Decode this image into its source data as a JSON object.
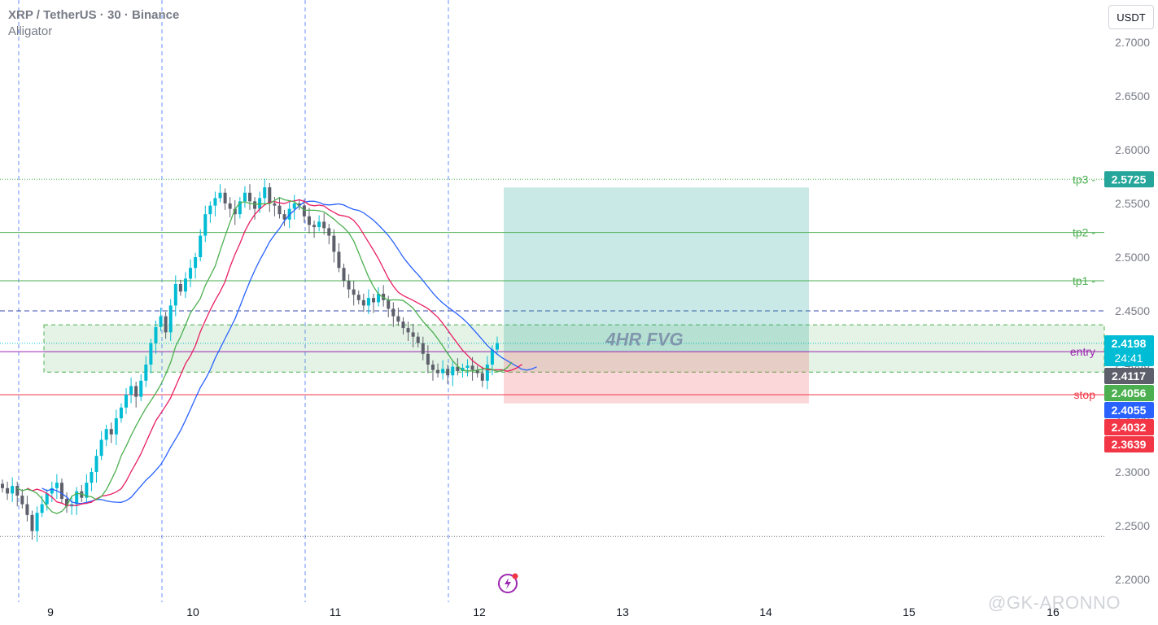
{
  "header": {
    "symbol": "XRP / TetherUS · 30 · Binance",
    "indicator": "Alligator"
  },
  "unit_button": "USDT",
  "watermark": "@GK-ARONNO",
  "colors": {
    "up": "#26a69a",
    "down": "#787b86",
    "candle_up": "#00bcd4",
    "candle_down": "#5d606b",
    "jaw": "#2962ff",
    "teeth": "#e91e63",
    "lips": "#4caf50",
    "tp": "#4caf50",
    "entry": "#9c27b0",
    "stop": "#f23645",
    "profit_zone": "rgba(38,166,154,0.25)",
    "loss_zone": "rgba(242,54,69,0.20)",
    "fvg": "rgba(76,175,80,0.15)"
  },
  "chart_data": {
    "type": "candlestick",
    "y_axis": {
      "min": 2.19,
      "max": 2.72,
      "ticks": [
        2.7,
        2.65,
        2.6,
        2.55,
        2.5,
        2.45,
        2.4,
        2.35,
        2.3,
        2.25,
        2.2
      ]
    },
    "x_axis": {
      "labels": [
        "9",
        "10",
        "11",
        "12",
        "13",
        "14",
        "15",
        "16"
      ]
    },
    "levels": [
      {
        "name": "tp3",
        "price": 2.5725,
        "color": "#4caf50",
        "style": "dotted"
      },
      {
        "name": "tp2",
        "price": 2.523,
        "color": "#4caf50",
        "style": "solid"
      },
      {
        "name": "tp1",
        "price": 2.478,
        "color": "#4caf50",
        "style": "solid"
      },
      {
        "name": "entry",
        "price": 2.412,
        "color": "#9c27b0",
        "style": "solid"
      },
      {
        "name": "stop",
        "price": 2.372,
        "color": "#f23645",
        "style": "solid"
      }
    ],
    "annotation": "4HR FVG",
    "fvg_zone": {
      "top": 2.437,
      "bottom": 2.393
    },
    "price_labels": [
      {
        "text": "2.5725",
        "price": 2.5725,
        "bg": "#26a69a"
      },
      {
        "text": "2.4198",
        "text2": "24:41",
        "price": 2.4198,
        "bg": "#00bcd4"
      },
      {
        "text": "2.4117",
        "price": 2.4117,
        "bg": "#5d606b"
      },
      {
        "text": "2.4056",
        "price": 2.4056,
        "bg": "#4caf50"
      },
      {
        "text": "2.4055",
        "price": 2.4055,
        "bg": "#2962ff"
      },
      {
        "text": "2.4032",
        "price": 2.4032,
        "bg": "#f23645"
      },
      {
        "text": "2.3639",
        "price": 2.3639,
        "bg": "#f23645"
      }
    ],
    "series": [
      {
        "name": "close_path",
        "values": [
          2.285,
          2.28,
          2.287,
          2.278,
          2.27,
          2.26,
          2.245,
          2.262,
          2.27,
          2.28,
          2.285,
          2.29,
          2.275,
          2.268,
          2.27,
          2.282,
          2.276,
          2.29,
          2.3,
          2.315,
          2.33,
          2.34,
          2.335,
          2.35,
          2.36,
          2.372,
          2.38,
          2.37,
          2.385,
          2.4,
          2.42,
          2.435,
          2.445,
          2.43,
          2.455,
          2.475,
          2.468,
          2.48,
          2.49,
          2.5,
          2.52,
          2.54,
          2.548,
          2.555,
          2.56,
          2.55,
          2.545,
          2.54,
          2.552,
          2.56,
          2.552,
          2.545,
          2.555,
          2.565,
          2.55,
          2.548,
          2.54,
          2.535,
          2.545,
          2.55,
          2.548,
          2.538,
          2.53,
          2.528,
          2.533,
          2.527,
          2.52,
          2.505,
          2.49,
          2.478,
          2.47,
          2.465,
          2.46,
          2.455,
          2.462,
          2.458,
          2.466,
          2.46,
          2.452,
          2.445,
          2.44,
          2.434,
          2.43,
          2.426,
          2.42,
          2.41,
          2.4,
          2.395,
          2.392,
          2.396,
          2.39,
          2.398,
          2.394,
          2.397,
          2.399,
          2.395,
          2.392,
          2.385,
          2.4,
          2.414,
          2.42
        ]
      }
    ]
  }
}
